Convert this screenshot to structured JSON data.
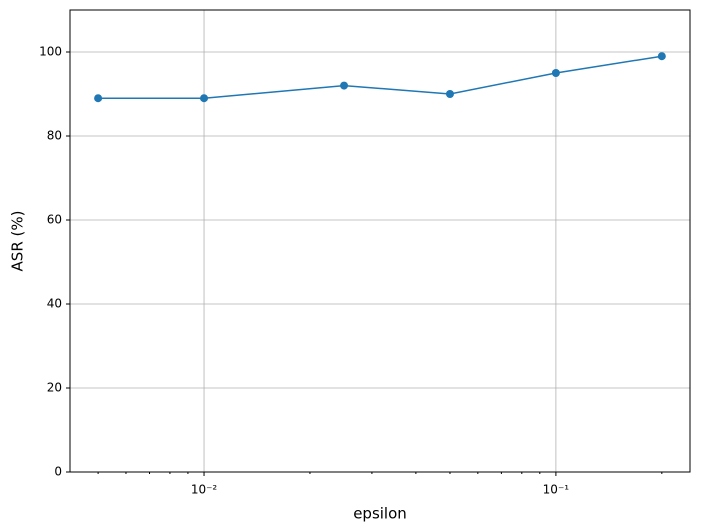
{
  "chart_data": {
    "type": "line",
    "x_label": "epsilon",
    "y_label": "ASR (%)",
    "x": [
      0.005,
      0.01,
      0.025,
      0.05,
      0.1,
      0.2
    ],
    "series": [
      {
        "color": "#1f77b4",
        "values": [
          89,
          89,
          92,
          90,
          95,
          99
        ]
      }
    ],
    "x_scale": "log",
    "xlim": [
      0.00416,
      0.2405
    ],
    "xticks": [
      {
        "value": 0.01,
        "label": "10⁻²"
      },
      {
        "value": 0.1,
        "label": "10⁻¹"
      }
    ],
    "xminorticks": [
      0.005,
      0.006,
      0.007,
      0.008,
      0.009,
      0.02,
      0.03,
      0.04,
      0.05,
      0.06,
      0.07,
      0.08,
      0.09,
      0.2
    ],
    "ylim": [
      0,
      110
    ],
    "yticks": [
      0,
      20,
      40,
      60,
      80,
      100
    ],
    "grid": true
  }
}
